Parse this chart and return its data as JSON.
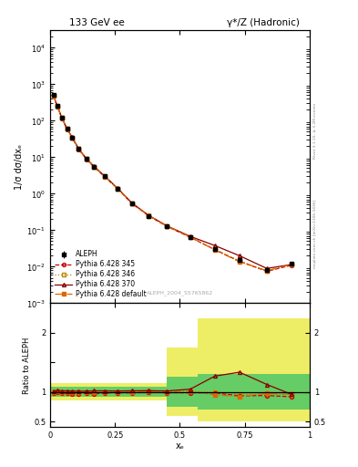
{
  "title_left": "133 GeV ee",
  "title_right": "γ*/Z (Hadronic)",
  "ylabel_main": "1/σ dσ/dxₑ",
  "ylabel_ratio": "Ratio to ALEPH",
  "xlabel": "xₑ",
  "watermark": "ALEPH_2004_S5765862",
  "right_label": "mcplots.cern.ch [arXiv:1306.3436]",
  "right_label2": "Rivet 3.1.10, ≥ 3.2M events",
  "aleph_x": [
    0.0125,
    0.0275,
    0.045,
    0.065,
    0.085,
    0.11,
    0.14,
    0.17,
    0.21,
    0.26,
    0.315,
    0.38,
    0.45,
    0.54,
    0.635,
    0.73,
    0.835,
    0.93
  ],
  "aleph_y": [
    500,
    250,
    120,
    60,
    35,
    17,
    9.0,
    5.5,
    3.0,
    1.4,
    0.55,
    0.25,
    0.13,
    0.065,
    0.03,
    0.015,
    0.008,
    0.012
  ],
  "aleph_yerr": [
    30,
    15,
    7,
    3.5,
    2,
    1,
    0.5,
    0.3,
    0.15,
    0.07,
    0.025,
    0.012,
    0.006,
    0.003,
    0.0015,
    0.0008,
    0.0004,
    0.0006
  ],
  "pythia345_y": [
    490,
    248,
    118,
    59,
    34,
    16.5,
    8.8,
    5.3,
    2.95,
    1.38,
    0.54,
    0.248,
    0.128,
    0.064,
    0.0295,
    0.014,
    0.0075,
    0.011
  ],
  "pythia346_y": [
    495,
    249,
    119,
    59.5,
    34.5,
    16.8,
    8.9,
    5.4,
    2.97,
    1.39,
    0.545,
    0.249,
    0.129,
    0.065,
    0.0298,
    0.0145,
    0.0077,
    0.0115
  ],
  "pythia370_y": [
    505,
    255,
    122,
    61,
    35.5,
    17.2,
    9.1,
    5.6,
    3.05,
    1.42,
    0.56,
    0.255,
    0.132,
    0.068,
    0.038,
    0.02,
    0.009,
    0.0115
  ],
  "pythia_def_y": [
    498,
    251,
    120,
    60,
    34.8,
    16.9,
    8.95,
    5.45,
    2.98,
    1.4,
    0.548,
    0.251,
    0.13,
    0.066,
    0.0285,
    0.0138,
    0.0078,
    0.0115
  ],
  "ratio345_y": [
    0.98,
    0.99,
    0.983,
    0.983,
    0.971,
    0.971,
    0.978,
    0.964,
    0.983,
    0.986,
    0.982,
    0.992,
    0.985,
    0.985,
    0.983,
    0.933,
    0.938,
    0.917
  ],
  "ratio346_y": [
    0.99,
    1.0,
    0.992,
    0.992,
    0.986,
    0.988,
    0.989,
    0.982,
    0.99,
    0.993,
    0.991,
    0.996,
    0.992,
    1.0,
    0.993,
    0.967,
    0.963,
    0.958
  ],
  "ratio370_y": [
    1.01,
    1.02,
    1.017,
    1.017,
    1.014,
    1.012,
    1.011,
    1.018,
    1.017,
    1.014,
    1.018,
    1.02,
    1.015,
    1.046,
    1.267,
    1.333,
    1.125,
    0.958
  ],
  "ratio_def_y": [
    0.996,
    1.004,
    1.0,
    1.0,
    0.994,
    0.994,
    0.994,
    0.991,
    0.993,
    1.0,
    0.996,
    1.004,
    1.0,
    1.015,
    0.95,
    0.92,
    0.975,
    0.958
  ],
  "color_aleph": "#000000",
  "color_345": "#cc0000",
  "color_346": "#bb8800",
  "color_370": "#880000",
  "color_def": "#dd6600",
  "ylim_main": [
    0.001,
    30000.0
  ],
  "ylim_ratio": [
    0.4,
    2.5
  ],
  "xlim": [
    0.0,
    1.0
  ]
}
